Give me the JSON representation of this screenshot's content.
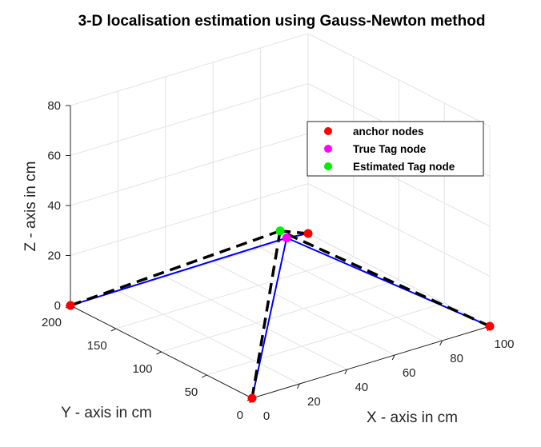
{
  "chart_data": {
    "type": "scatter3d",
    "title": "3-D localisation estimation using Gauss-Newton method",
    "xlabel": "X - axis in cm",
    "ylabel": "Y - axis in cm",
    "zlabel": "Z - axis in cm",
    "xlim": [
      0,
      100
    ],
    "ylim": [
      0,
      200
    ],
    "zlim": [
      0,
      80
    ],
    "xticks": [
      "0",
      "20",
      "40",
      "60",
      "80",
      "100"
    ],
    "yticks": [
      "0",
      "50",
      "100",
      "150",
      "200"
    ],
    "zticks": [
      "0",
      "20",
      "40",
      "60",
      "80"
    ],
    "grid": true,
    "legend_position": "top-right",
    "series": [
      {
        "name": "anchor nodes",
        "color": "#ff0000",
        "points": [
          [
            0,
            0,
            0
          ],
          [
            100,
            0,
            0
          ],
          [
            0,
            200,
            0
          ],
          [
            100,
            200,
            0
          ]
        ]
      },
      {
        "name": "True Tag node",
        "color": "#ff00ff",
        "points": [
          [
            52,
            98,
            31
          ]
        ]
      },
      {
        "name": "Estimated Tag node",
        "color": "#00ee00",
        "points": [
          [
            50,
            100,
            34
          ]
        ]
      }
    ],
    "true_lines_color": "#0000ff",
    "estimated_lines_color": "#000000"
  }
}
